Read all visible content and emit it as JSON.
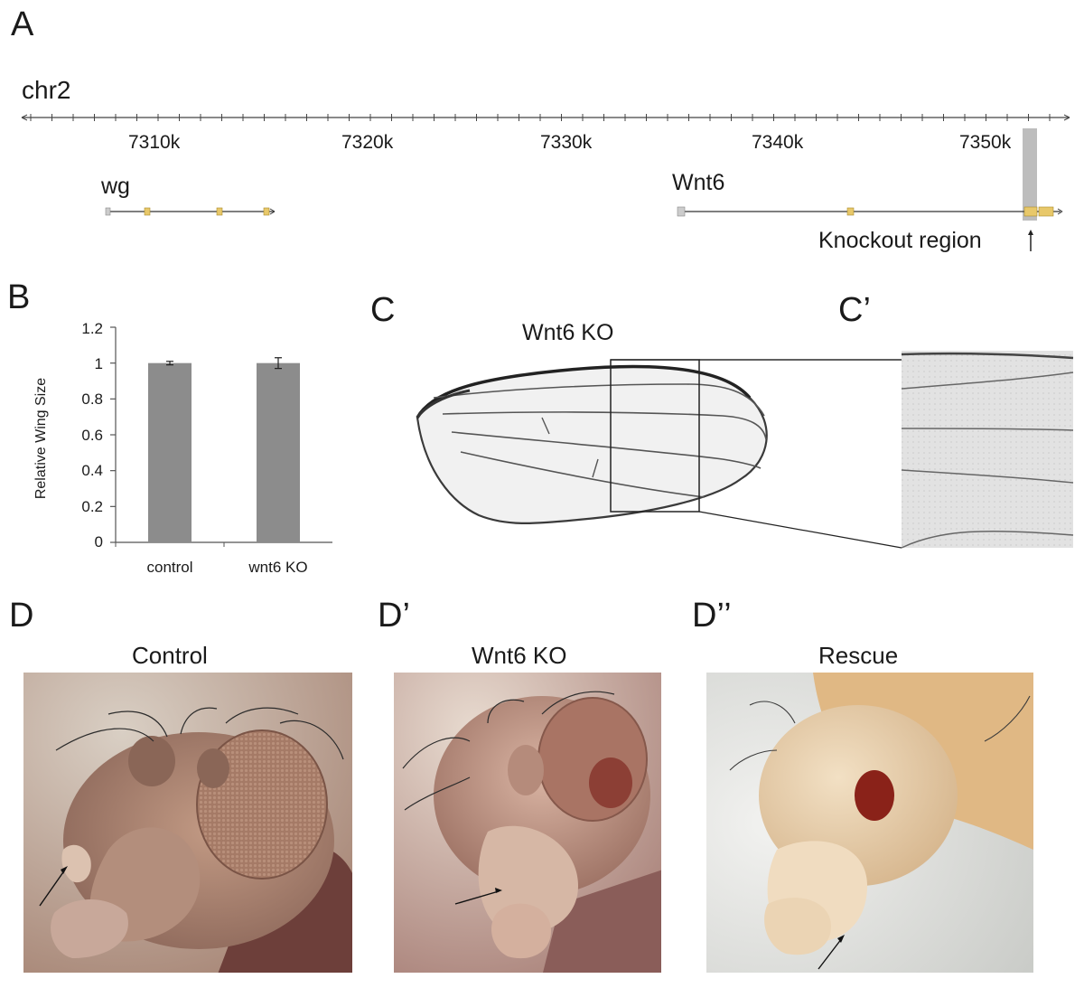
{
  "panels": {
    "a": "A",
    "b": "B",
    "c": "C",
    "c_prime": "C’",
    "d": "D",
    "d_prime": "D’",
    "d_double_prime": "D’’"
  },
  "genome": {
    "chromosome": "chr2",
    "ticks": [
      "7310k",
      "7320k",
      "7330k",
      "7340k",
      "7350k"
    ],
    "gene1": "wg",
    "gene2": "Wnt6",
    "knockout_label": "Knockout region",
    "colors": {
      "exon": "#e8c86a",
      "utr": "#cccccc",
      "highlight": "#bdbdbd"
    }
  },
  "wing": {
    "title": "Wnt6 KO"
  },
  "photos": {
    "control": "Control",
    "ko": "Wnt6 KO",
    "rescue": "Rescue"
  },
  "chart_data": {
    "type": "bar",
    "categories": [
      "control",
      "wnt6 KO"
    ],
    "values": [
      1.0,
      1.0
    ],
    "errors": [
      0.01,
      0.03
    ],
    "ylabel": "Relative Wing Size",
    "ylim": [
      0,
      1.2
    ],
    "yticks": [
      "0",
      "0.2",
      "0.4",
      "0.6",
      "0.8",
      "1",
      "1.2"
    ],
    "bar_color": "#8c8c8c"
  }
}
